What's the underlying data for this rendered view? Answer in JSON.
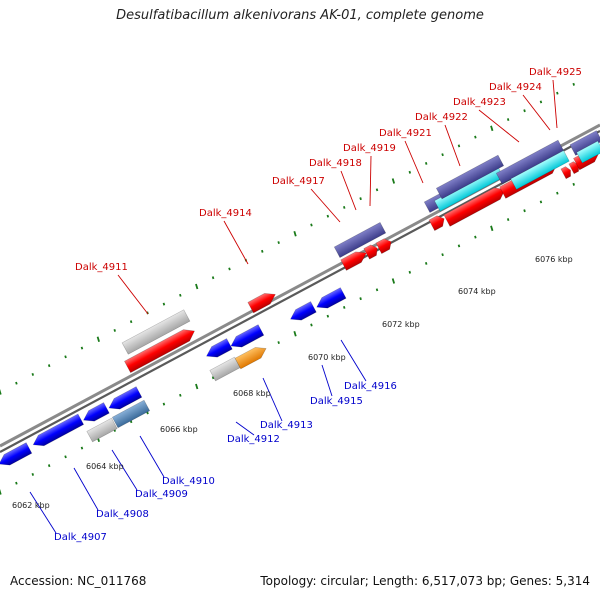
{
  "title": "Desulfatibacillum alkenivorans AK-01, complete genome",
  "footer": {
    "accession": "Accession: NC_011768",
    "summary": "Topology: circular; Length: 6,517,073 bp; Genes: 5,314"
  },
  "colors": {
    "backbone": "#8a8a8a",
    "tick_marks": "#1a7a1a",
    "forward_label": "#cc0000",
    "reverse_label": "#0000cc"
  },
  "scale_labels": [
    "6062 kbp",
    "6064 kbp",
    "6066 kbp",
    "6068 kbp",
    "6070 kbp",
    "6072 kbp",
    "6074 kbp",
    "6076 kbp"
  ],
  "genes": [
    {
      "name": "Dalk_4907",
      "strand": "reverse",
      "label": "Dalk_4907"
    },
    {
      "name": "Dalk_4908",
      "strand": "reverse",
      "label": "Dalk_4908"
    },
    {
      "name": "Dalk_4909",
      "strand": "reverse",
      "label": "Dalk_4909"
    },
    {
      "name": "Dalk_4910",
      "strand": "reverse",
      "label": "Dalk_4910"
    },
    {
      "name": "Dalk_4911",
      "strand": "forward",
      "label": "Dalk_4911"
    },
    {
      "name": "Dalk_4912",
      "strand": "reverse",
      "label": "Dalk_4912"
    },
    {
      "name": "Dalk_4913",
      "strand": "reverse",
      "label": "Dalk_4913"
    },
    {
      "name": "Dalk_4914",
      "strand": "forward",
      "label": "Dalk_4914"
    },
    {
      "name": "Dalk_4915",
      "strand": "reverse",
      "label": "Dalk_4915"
    },
    {
      "name": "Dalk_4916",
      "strand": "reverse",
      "label": "Dalk_4916"
    },
    {
      "name": "Dalk_4917",
      "strand": "forward",
      "label": "Dalk_4917"
    },
    {
      "name": "Dalk_4918",
      "strand": "forward",
      "label": "Dalk_4918"
    },
    {
      "name": "Dalk_4919",
      "strand": "forward",
      "label": "Dalk_4919"
    },
    {
      "name": "Dalk_4921",
      "strand": "forward",
      "label": "Dalk_4921"
    },
    {
      "name": "Dalk_4922",
      "strand": "forward",
      "label": "Dalk_4922"
    },
    {
      "name": "Dalk_4923",
      "strand": "forward",
      "label": "Dalk_4923"
    },
    {
      "name": "Dalk_4924",
      "strand": "forward",
      "label": "Dalk_4924"
    },
    {
      "name": "Dalk_4925",
      "strand": "forward",
      "label": "Dalk_4925"
    }
  ]
}
